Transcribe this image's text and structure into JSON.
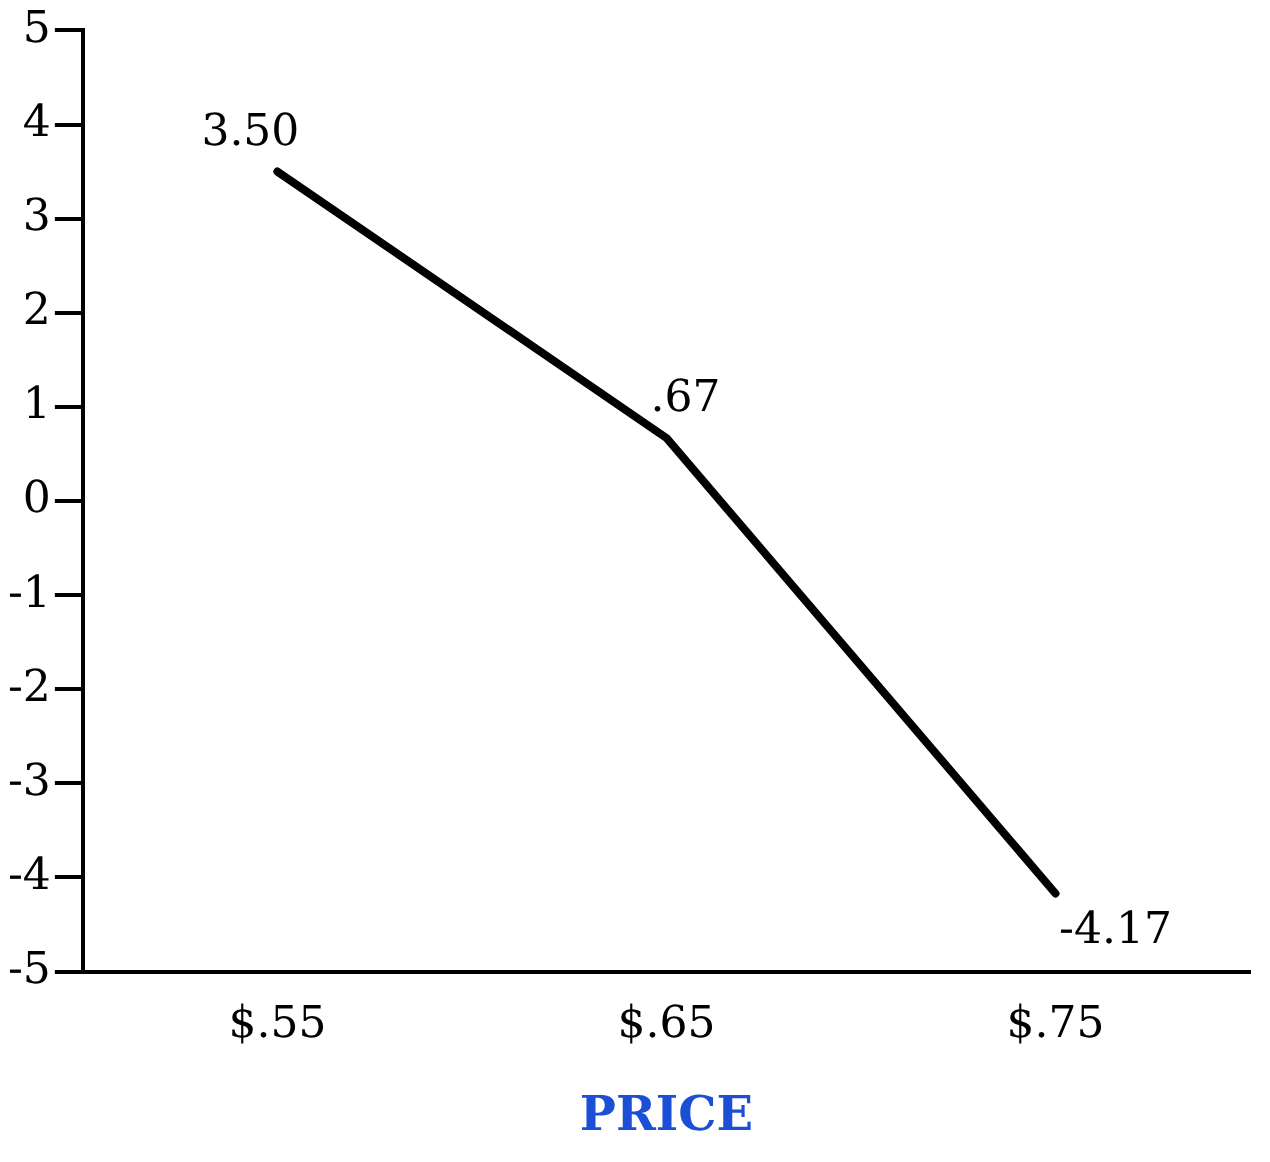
{
  "chart_data": {
    "type": "line",
    "xlabel": "PRICE",
    "categories": [
      "$.55",
      "$.65",
      "$.75"
    ],
    "series": [
      {
        "color": "#000000",
        "values": [
          3.5,
          0.67,
          -4.17
        ],
        "value_labels": [
          "3.50",
          ".67",
          "-4.17"
        ]
      }
    ],
    "ylim": [
      -5,
      5
    ],
    "yticks": [
      -5,
      -4,
      -3,
      -2,
      -1,
      0,
      1,
      2,
      3,
      4,
      5
    ],
    "grid": false,
    "legend": false,
    "marker": "none",
    "line_style": "solid"
  }
}
